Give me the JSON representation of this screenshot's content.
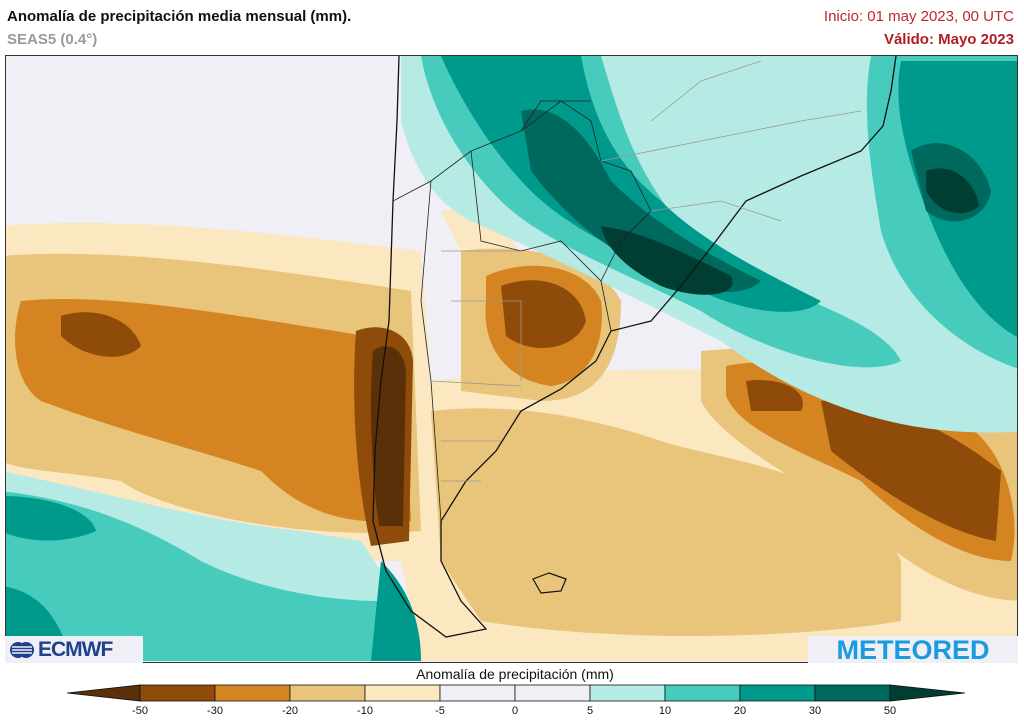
{
  "header": {
    "title": "Anomalía de precipitación media mensual (mm).",
    "subtitle": "SEAS5 (0.4°)",
    "init": "Inicio: 01 may 2023, 00 UTC",
    "valid": "Válido: Mayo 2023"
  },
  "logos": {
    "left": "ECMWF",
    "right": "METEORED"
  },
  "colorbar": {
    "title": "Anomalía de precipitación (mm)",
    "ticks": [
      "-50",
      "-30",
      "-20",
      "-10",
      "-5",
      "0",
      "5",
      "10",
      "20",
      "30",
      "50"
    ],
    "colors": {
      "under": "#5a3008",
      "bins": [
        "#8e4b0a",
        "#d48421",
        "#e9c47b",
        "#fbe8c1",
        "#f0eff5",
        "#f0eff5",
        "#b5ebe4",
        "#46cbbd",
        "#009a8c",
        "#00695e"
      ],
      "over": "#003d33"
    }
  }
}
